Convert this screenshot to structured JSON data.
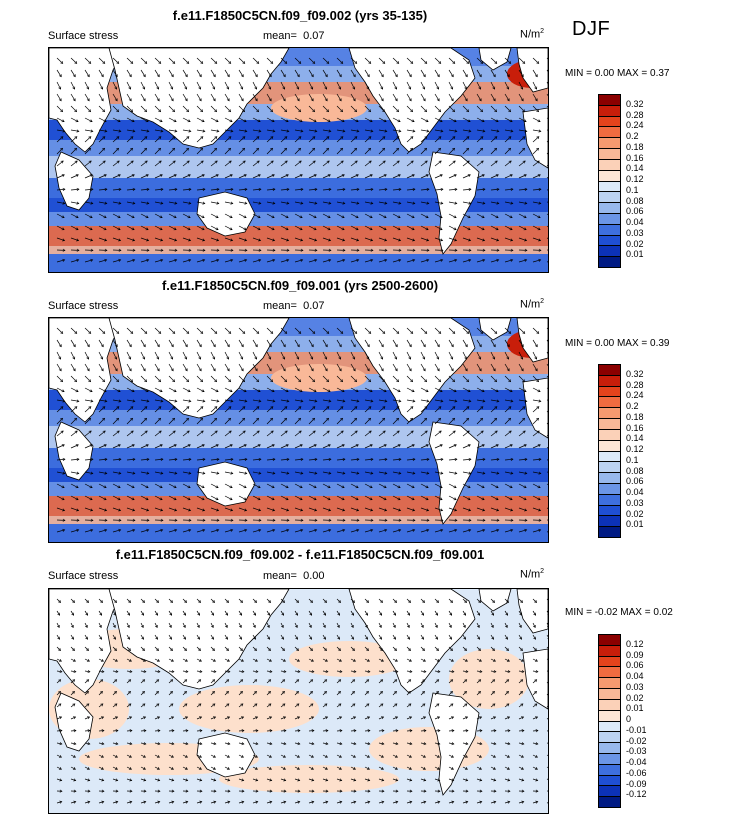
{
  "season": "DJF",
  "panels": [
    {
      "title": "f.e11.F1850C5CN.f09_f09.002 (yrs 35-135)",
      "left_label": "Surface stress",
      "mean_label": "mean=",
      "mean_value": "0.07",
      "units_base": "N/m",
      "units_exp": "2",
      "minmax": "MIN =   0.00 MAX =   0.37",
      "min": 0.0,
      "max": 0.37,
      "colorbar_levels": [
        "0.32",
        "0.28",
        "0.24",
        "0.2",
        "0.18",
        "0.16",
        "0.14",
        "0.12",
        "0.1",
        "0.08",
        "0.06",
        "0.04",
        "0.03",
        "0.02",
        "0.01"
      ],
      "colorbar_colors": [
        "#8b0000",
        "#c81e0a",
        "#e4431c",
        "#f06b40",
        "#f69a70",
        "#f9b898",
        "#fbd1b8",
        "#fde6d6",
        "#dce9f8",
        "#bcd2f1",
        "#98b8ec",
        "#6b95e6",
        "#3e6fde",
        "#1f4fd3",
        "#0c32b8",
        "#001a83"
      ]
    },
    {
      "title": "f.e11.F1850C5CN.f09_f09.001 (yrs 2500-2600)",
      "left_label": "Surface stress",
      "mean_label": "mean=",
      "mean_value": "0.07",
      "units_base": "N/m",
      "units_exp": "2",
      "minmax": "MIN =   0.00 MAX =   0.39",
      "min": 0.0,
      "max": 0.39,
      "colorbar_levels": [
        "0.32",
        "0.28",
        "0.24",
        "0.2",
        "0.18",
        "0.16",
        "0.14",
        "0.12",
        "0.1",
        "0.08",
        "0.06",
        "0.04",
        "0.03",
        "0.02",
        "0.01"
      ],
      "colorbar_colors": [
        "#8b0000",
        "#c81e0a",
        "#e4431c",
        "#f06b40",
        "#f69a70",
        "#f9b898",
        "#fbd1b8",
        "#fde6d6",
        "#dce9f8",
        "#bcd2f1",
        "#98b8ec",
        "#6b95e6",
        "#3e6fde",
        "#1f4fd3",
        "#0c32b8",
        "#001a83"
      ]
    },
    {
      "title": "f.e11.F1850C5CN.f09_f09.002 - f.e11.F1850C5CN.f09_f09.001",
      "left_label": "Surface stress",
      "mean_label": "mean=",
      "mean_value": "0.00",
      "units_base": "N/m",
      "units_exp": "2",
      "minmax": "MIN =  -0.02 MAX =   0.02",
      "min": -0.02,
      "max": 0.02,
      "colorbar_levels": [
        "0.12",
        "0.09",
        "0.06",
        "0.04",
        "0.03",
        "0.02",
        "0.01",
        "0",
        "-0.01",
        "-0.02",
        "-0.03",
        "-0.04",
        "-0.06",
        "-0.09",
        "-0.12"
      ],
      "colorbar_colors": [
        "#8b0000",
        "#c81e0a",
        "#e4431c",
        "#f06b40",
        "#f69a70",
        "#f9b898",
        "#fbd1b8",
        "#fde6d6",
        "#dce9f8",
        "#bcd2f1",
        "#98b8ec",
        "#6b95e6",
        "#3e6fde",
        "#1f4fd3",
        "#0c32b8",
        "#001a83"
      ]
    }
  ],
  "chart_data": [
    {
      "type": "heatmap",
      "title": "f.e11.F1850C5CN.f09_f09.002 (yrs 35-135)",
      "variable": "Surface stress",
      "units": "N/m2",
      "mean": 0.07,
      "min": 0.0,
      "max": 0.37,
      "contour_levels": [
        0.01,
        0.02,
        0.03,
        0.04,
        0.06,
        0.08,
        0.1,
        0.12,
        0.14,
        0.16,
        0.18,
        0.2,
        0.24,
        0.28,
        0.32
      ],
      "vectors": true
    },
    {
      "type": "heatmap",
      "title": "f.e11.F1850C5CN.f09_f09.001 (yrs 2500-2600)",
      "variable": "Surface stress",
      "units": "N/m2",
      "mean": 0.07,
      "min": 0.0,
      "max": 0.39,
      "contour_levels": [
        0.01,
        0.02,
        0.03,
        0.04,
        0.06,
        0.08,
        0.1,
        0.12,
        0.14,
        0.16,
        0.18,
        0.2,
        0.24,
        0.28,
        0.32
      ],
      "vectors": true
    },
    {
      "type": "heatmap",
      "title": "f.e11.F1850C5CN.f09_f09.002 - f.e11.F1850C5CN.f09_f09.001",
      "variable": "Surface stress",
      "units": "N/m2",
      "mean": 0.0,
      "min": -0.02,
      "max": 0.02,
      "contour_levels": [
        -0.12,
        -0.09,
        -0.06,
        -0.04,
        -0.03,
        -0.02,
        -0.01,
        0,
        0.01,
        0.02,
        0.03,
        0.04,
        0.06,
        0.09,
        0.12
      ],
      "vectors": true
    }
  ]
}
